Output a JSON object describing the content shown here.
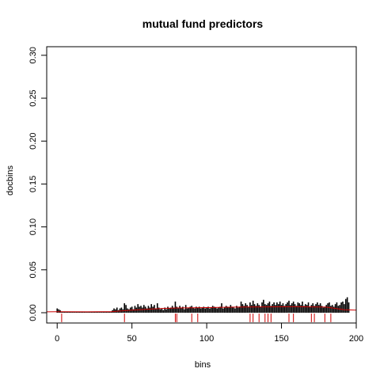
{
  "chart_data": {
    "type": "bar",
    "title": "mutual fund predictors",
    "xlabel": "bins",
    "ylabel": "docbins",
    "xlim": [
      -7,
      200
    ],
    "ylim": [
      -0.012,
      0.31
    ],
    "x_ticks": [
      0,
      50,
      100,
      150,
      200
    ],
    "y_ticks": [
      0.0,
      0.05,
      0.1,
      0.15,
      0.2,
      0.25,
      0.3
    ],
    "x_tick_labels": [
      "0",
      "50",
      "100",
      "150",
      "200"
    ],
    "y_tick_labels": [
      "0.00",
      "0.05",
      "0.10",
      "0.15",
      "0.20",
      "0.25",
      "0.30"
    ],
    "bar_color": "#000000",
    "smooth_color": "#cc0000",
    "rug_color": "#cc0000",
    "series": [
      {
        "values": [
          0.005,
          0.004,
          0.003,
          0.001,
          0.001,
          0.001,
          0.001,
          0.001,
          0.001,
          0.001,
          0.001,
          0.001,
          0.001,
          0.001,
          0.001,
          0.001,
          0.001,
          0.001,
          0.001,
          0.001,
          0.001,
          0.001,
          0.001,
          0.001,
          0.001,
          0.001,
          0.001,
          0.001,
          0.001,
          0.001,
          0.001,
          0.001,
          0.001,
          0.001,
          0.001,
          0.001,
          0.001,
          0.003,
          0.005,
          0.004,
          0.006,
          0.003,
          0.005,
          0.006,
          0.004,
          0.011,
          0.009,
          0.005,
          0.004,
          0.006,
          0.007,
          0.004,
          0.008,
          0.006,
          0.01,
          0.007,
          0.008,
          0.006,
          0.009,
          0.007,
          0.005,
          0.008,
          0.006,
          0.01,
          0.007,
          0.009,
          0.005,
          0.011,
          0.006,
          0.004,
          0.005,
          0.003,
          0.006,
          0.004,
          0.007,
          0.005,
          0.006,
          0.008,
          0.006,
          0.013,
          0.007,
          0.005,
          0.008,
          0.006,
          0.007,
          0.004,
          0.009,
          0.005,
          0.006,
          0.007,
          0.008,
          0.006,
          0.005,
          0.007,
          0.006,
          0.007,
          0.005,
          0.006,
          0.007,
          0.005,
          0.006,
          0.007,
          0.005,
          0.006,
          0.008,
          0.007,
          0.006,
          0.005,
          0.006,
          0.007,
          0.011,
          0.005,
          0.006,
          0.008,
          0.007,
          0.006,
          0.009,
          0.007,
          0.006,
          0.005,
          0.008,
          0.006,
          0.007,
          0.013,
          0.01,
          0.008,
          0.011,
          0.009,
          0.007,
          0.012,
          0.009,
          0.014,
          0.01,
          0.008,
          0.011,
          0.009,
          0.007,
          0.012,
          0.015,
          0.01,
          0.009,
          0.011,
          0.013,
          0.008,
          0.01,
          0.012,
          0.009,
          0.012,
          0.01,
          0.013,
          0.009,
          0.011,
          0.008,
          0.01,
          0.012,
          0.014,
          0.009,
          0.011,
          0.013,
          0.01,
          0.008,
          0.012,
          0.011,
          0.009,
          0.013,
          0.008,
          0.01,
          0.009,
          0.012,
          0.007,
          0.009,
          0.011,
          0.008,
          0.01,
          0.012,
          0.009,
          0.011,
          0.008,
          0.006,
          0.007,
          0.009,
          0.011,
          0.012,
          0.008,
          0.009,
          0.007,
          0.01,
          0.012,
          0.008,
          0.009,
          0.012,
          0.013,
          0.01,
          0.016,
          0.018,
          0.012
        ]
      }
    ],
    "smooth_line": [
      [
        -7,
        0.001
      ],
      [
        0,
        0.0012
      ],
      [
        20,
        0.001
      ],
      [
        36,
        0.0012
      ],
      [
        50,
        0.003
      ],
      [
        70,
        0.005
      ],
      [
        80,
        0.0055
      ],
      [
        100,
        0.006
      ],
      [
        120,
        0.0065
      ],
      [
        140,
        0.0068
      ],
      [
        160,
        0.007
      ],
      [
        180,
        0.0065
      ],
      [
        192,
        0.0035
      ],
      [
        200,
        0.003
      ]
    ],
    "rug_positions": [
      3,
      45,
      79,
      80,
      90,
      94,
      129,
      131,
      135,
      139,
      141,
      143,
      155,
      158,
      170,
      172,
      179,
      183
    ]
  }
}
